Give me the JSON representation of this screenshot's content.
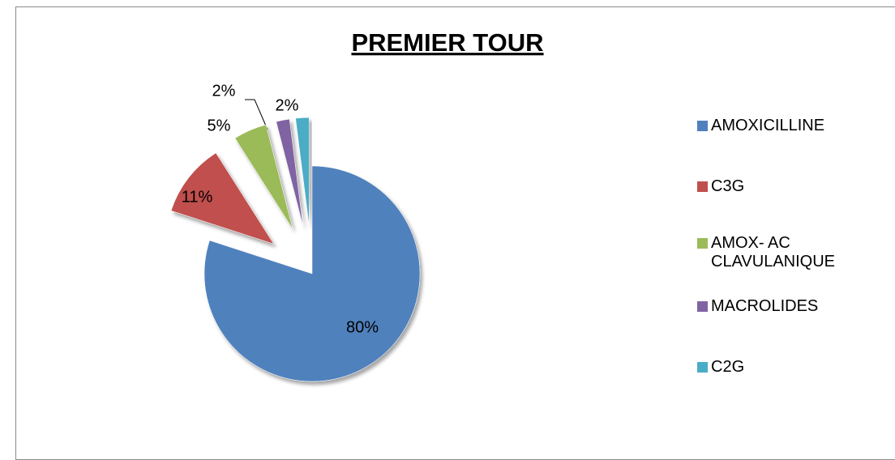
{
  "chart_data": {
    "type": "pie",
    "title": "PREMIER TOUR",
    "categories": [
      "AMOXICILLINE",
      "C3G",
      "AMOX- AC CLAVULANIQUE",
      "MACROLIDES",
      "C2G"
    ],
    "values": [
      80,
      11,
      5,
      2,
      2
    ],
    "value_labels": [
      "80%",
      "11%",
      "5%",
      "2%",
      "2%"
    ],
    "colors": [
      "#4f81bd",
      "#c0504d",
      "#9bbb59",
      "#8064a2",
      "#4bacc6"
    ],
    "legend": "right"
  }
}
